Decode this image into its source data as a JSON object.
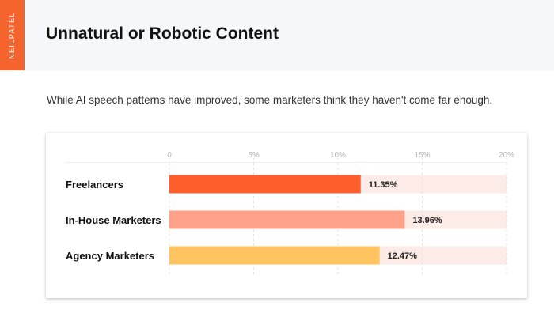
{
  "brand": {
    "name": "NEILPATEL",
    "color": "#f4642c"
  },
  "header": {
    "title": "Unnatural or Robotic Content",
    "subtitle": "While AI speech patterns have improved, some marketers think they haven't come far enough."
  },
  "chart_data": {
    "type": "bar",
    "orientation": "horizontal",
    "categories": [
      "Freelancers",
      "In-House Marketers",
      "Agency Marketers"
    ],
    "values": [
      11.35,
      13.96,
      12.47
    ],
    "value_labels": [
      "11.35%",
      "13.96%",
      "12.47%"
    ],
    "bar_colors": [
      "#fe5e2b",
      "#ffa289",
      "#ffc35f"
    ],
    "track_color": "#fcebe6",
    "xlim": [
      0,
      20
    ],
    "x_ticks": [
      0,
      5,
      10,
      15,
      20
    ],
    "x_tick_labels": [
      "0",
      "5%",
      "10%",
      "15%",
      "20%"
    ],
    "grid": true,
    "title": "",
    "xlabel": "",
    "ylabel": ""
  }
}
